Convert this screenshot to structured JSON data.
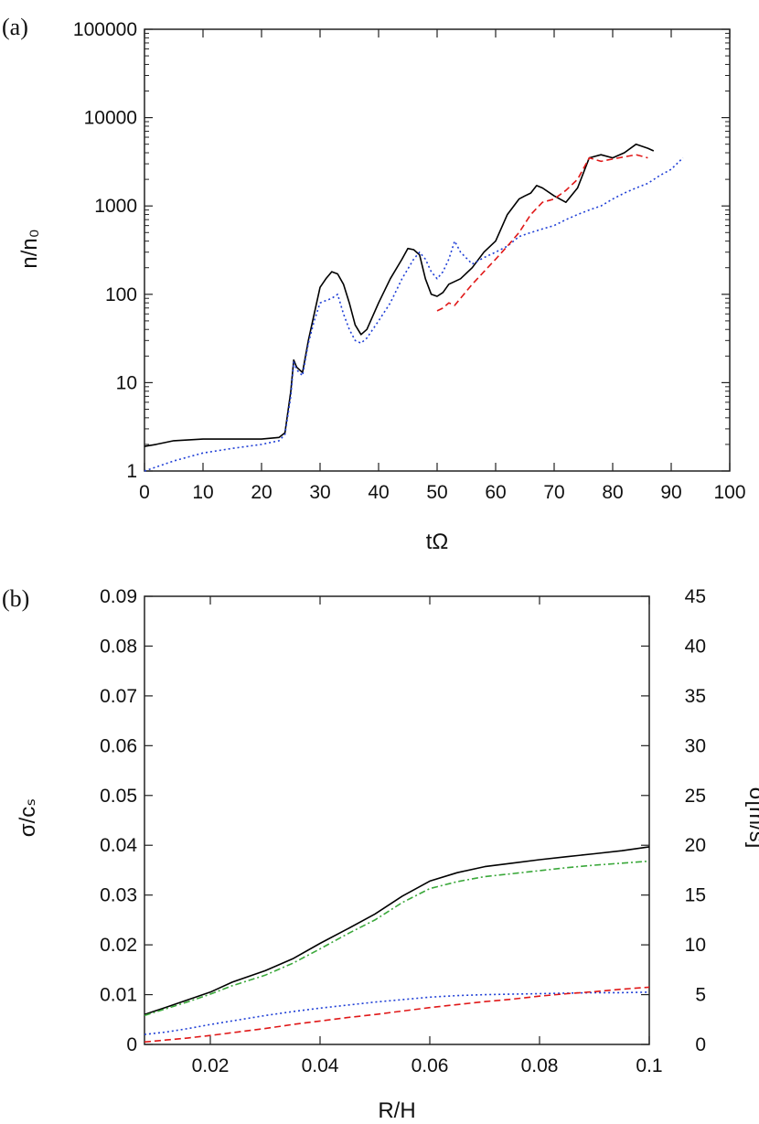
{
  "chart_data": [
    {
      "type": "line",
      "panel_label": "(a)",
      "xlabel": "tΩ",
      "ylabel": "n/n₀",
      "yscale": "log",
      "xlim": [
        0,
        100
      ],
      "ylim": [
        1,
        100000
      ],
      "xticks": [
        0,
        10,
        20,
        30,
        40,
        50,
        60,
        70,
        80,
        90,
        100
      ],
      "yticks": [
        1,
        10,
        100,
        1000,
        10000,
        100000
      ],
      "ytick_labels": [
        "1",
        "10",
        "100",
        "1000",
        "10000",
        "100000"
      ],
      "grid": false,
      "series": [
        {
          "color": "#000000",
          "style": "solid",
          "x": [
            0,
            2,
            5,
            10,
            15,
            20,
            23,
            24,
            25,
            25.5,
            26,
            27,
            28,
            29,
            30,
            31,
            32,
            33,
            34,
            35,
            36,
            37,
            38,
            40,
            42,
            44,
            45,
            46,
            47,
            48,
            49,
            50,
            51,
            52,
            54,
            56,
            58,
            60,
            62,
            64,
            65,
            66,
            67,
            68,
            70,
            72,
            74,
            76,
            78,
            80,
            82,
            84,
            86,
            87
          ],
          "y": [
            1.9,
            2.0,
            2.2,
            2.3,
            2.3,
            2.3,
            2.4,
            2.7,
            8,
            18,
            15,
            13,
            30,
            60,
            120,
            150,
            180,
            170,
            130,
            80,
            45,
            35,
            40,
            80,
            150,
            250,
            330,
            320,
            280,
            150,
            100,
            95,
            105,
            130,
            150,
            200,
            300,
            400,
            800,
            1200,
            1300,
            1400,
            1700,
            1600,
            1300,
            1100,
            1600,
            3500,
            3800,
            3500,
            4000,
            5000,
            4500,
            4200
          ]
        },
        {
          "color": "#1f3fd6",
          "style": "dotted",
          "x": [
            0,
            5,
            10,
            15,
            20,
            23,
            24,
            25,
            25.5,
            26,
            27,
            28,
            29,
            30,
            31,
            32,
            33,
            34,
            35,
            36,
            37,
            38,
            40,
            42,
            44,
            46,
            47,
            48,
            49,
            50,
            51,
            52,
            53,
            54,
            56,
            58,
            60,
            62,
            64,
            66,
            68,
            70,
            72,
            74,
            76,
            78,
            80,
            82,
            84,
            86,
            88,
            90,
            92
          ],
          "y": [
            1.0,
            1.3,
            1.6,
            1.8,
            2.0,
            2.2,
            2.6,
            7,
            17,
            14,
            12,
            28,
            50,
            80,
            85,
            90,
            100,
            60,
            40,
            30,
            28,
            32,
            50,
            80,
            150,
            250,
            300,
            250,
            180,
            150,
            180,
            250,
            400,
            300,
            220,
            260,
            300,
            350,
            450,
            500,
            550,
            600,
            700,
            800,
            900,
            1000,
            1200,
            1400,
            1600,
            1800,
            2200,
            2600,
            3500
          ]
        },
        {
          "color": "#e01818",
          "style": "dashed",
          "x": [
            50,
            51,
            52,
            53,
            54,
            56,
            58,
            60,
            62,
            64,
            66,
            68,
            70,
            72,
            74,
            76,
            78,
            80,
            82,
            84,
            86
          ],
          "y": [
            65,
            70,
            80,
            75,
            90,
            130,
            180,
            250,
            350,
            500,
            800,
            1100,
            1200,
            1500,
            2000,
            3500,
            3200,
            3400,
            3600,
            3800,
            3500
          ]
        }
      ]
    },
    {
      "type": "line",
      "panel_label": "(b)",
      "xlabel": "R/H",
      "ylabel": "σ/cₛ",
      "ylabel_right": "σ[m/s]",
      "xlim": [
        0.008,
        0.1
      ],
      "ylim": [
        0,
        0.09
      ],
      "ylim_right": [
        0,
        45
      ],
      "xticks": [
        0.02,
        0.04,
        0.06,
        0.08,
        0.1
      ],
      "xtick_labels": [
        "0.02",
        "0.04",
        "0.06",
        "0.08",
        "0.1"
      ],
      "yticks": [
        0,
        0.01,
        0.02,
        0.03,
        0.04,
        0.05,
        0.06,
        0.07,
        0.08,
        0.09
      ],
      "ytick_labels": [
        "0",
        "0.01",
        "0.02",
        "0.03",
        "0.04",
        "0.05",
        "0.06",
        "0.07",
        "0.08",
        "0.09"
      ],
      "yticks_right": [
        0,
        5,
        10,
        15,
        20,
        25,
        30,
        35,
        40,
        45
      ],
      "ytick_labels_right": [
        "0",
        "5",
        "10",
        "15",
        "20",
        "25",
        "30",
        "35",
        "40",
        "45"
      ],
      "grid": false,
      "series": [
        {
          "color": "#000000",
          "style": "solid",
          "x": [
            0.008,
            0.012,
            0.016,
            0.02,
            0.024,
            0.03,
            0.035,
            0.04,
            0.045,
            0.05,
            0.055,
            0.06,
            0.065,
            0.07,
            0.075,
            0.08,
            0.085,
            0.09,
            0.095,
            0.1
          ],
          "y": [
            0.006,
            0.0075,
            0.009,
            0.0105,
            0.0125,
            0.0148,
            0.0172,
            0.0203,
            0.0232,
            0.0262,
            0.0298,
            0.0328,
            0.0345,
            0.0357,
            0.0364,
            0.0371,
            0.0377,
            0.0383,
            0.0389,
            0.0397
          ]
        },
        {
          "color": "#3aa83a",
          "style": "dash-dot",
          "x": [
            0.008,
            0.012,
            0.016,
            0.02,
            0.024,
            0.03,
            0.035,
            0.04,
            0.045,
            0.05,
            0.055,
            0.06,
            0.065,
            0.07,
            0.075,
            0.08,
            0.085,
            0.09,
            0.095,
            0.1
          ],
          "y": [
            0.0058,
            0.0072,
            0.0086,
            0.0101,
            0.0118,
            0.0139,
            0.0163,
            0.0192,
            0.0222,
            0.025,
            0.0285,
            0.0313,
            0.0327,
            0.0337,
            0.0343,
            0.0349,
            0.0355,
            0.036,
            0.0364,
            0.0368
          ]
        },
        {
          "color": "#1f3fd6",
          "style": "dotted",
          "x": [
            0.008,
            0.012,
            0.016,
            0.02,
            0.025,
            0.03,
            0.035,
            0.04,
            0.045,
            0.05,
            0.055,
            0.06,
            0.065,
            0.07,
            0.075,
            0.08,
            0.085,
            0.09,
            0.095,
            0.1
          ],
          "y": [
            0.002,
            0.0025,
            0.0032,
            0.004,
            0.0049,
            0.0058,
            0.0066,
            0.0073,
            0.0079,
            0.0085,
            0.009,
            0.0095,
            0.0098,
            0.01,
            0.0101,
            0.0102,
            0.0103,
            0.0104,
            0.0104,
            0.0105
          ]
        },
        {
          "color": "#e01818",
          "style": "dashed",
          "x": [
            0.008,
            0.012,
            0.016,
            0.02,
            0.025,
            0.03,
            0.035,
            0.04,
            0.045,
            0.05,
            0.055,
            0.06,
            0.065,
            0.07,
            0.075,
            0.08,
            0.085,
            0.09,
            0.095,
            0.1
          ],
          "y": [
            0.0005,
            0.0009,
            0.0013,
            0.0018,
            0.0025,
            0.0032,
            0.004,
            0.0047,
            0.0054,
            0.006,
            0.0067,
            0.0074,
            0.008,
            0.0086,
            0.0091,
            0.0097,
            0.0102,
            0.0106,
            0.0111,
            0.0115
          ]
        }
      ]
    }
  ]
}
